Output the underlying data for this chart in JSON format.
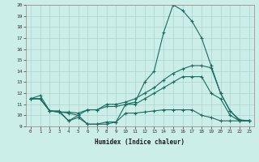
{
  "xlabel": "Humidex (Indice chaleur)",
  "background_color": "#cceee8",
  "grid_color": "#aad4ce",
  "line_color": "#1a6b60",
  "xlim": [
    -0.5,
    23.5
  ],
  "ylim": [
    9,
    20
  ],
  "xticks": [
    0,
    1,
    2,
    3,
    4,
    5,
    6,
    7,
    8,
    9,
    10,
    11,
    12,
    13,
    14,
    15,
    16,
    17,
    18,
    19,
    20,
    21,
    22,
    23
  ],
  "yticks": [
    9,
    10,
    11,
    12,
    13,
    14,
    15,
    16,
    17,
    18,
    19,
    20
  ],
  "lines": [
    {
      "x": [
        0,
        1,
        2,
        3,
        4,
        5,
        6,
        7,
        8,
        9,
        10,
        11,
        12,
        13,
        14,
        15,
        16,
        17,
        18,
        19,
        20,
        21,
        22,
        23
      ],
      "y": [
        11.5,
        11.8,
        10.4,
        10.4,
        9.5,
        10.0,
        9.2,
        9.2,
        9.4,
        9.4,
        11.0,
        11.2,
        13.0,
        14.0,
        17.5,
        20.0,
        19.5,
        18.5,
        17.0,
        14.5,
        12.0,
        10.4,
        9.6,
        9.5
      ]
    },
    {
      "x": [
        0,
        1,
        2,
        3,
        4,
        5,
        6,
        7,
        8,
        9,
        10,
        11,
        12,
        13,
        14,
        15,
        16,
        17,
        18,
        19,
        20,
        21,
        22,
        23
      ],
      "y": [
        11.5,
        11.5,
        10.4,
        10.3,
        10.3,
        10.2,
        10.5,
        10.5,
        11.0,
        11.0,
        11.2,
        11.5,
        12.0,
        12.5,
        13.2,
        13.8,
        14.2,
        14.5,
        14.5,
        14.3,
        12.0,
        10.4,
        9.5,
        9.5
      ]
    },
    {
      "x": [
        0,
        1,
        2,
        3,
        4,
        5,
        6,
        7,
        8,
        9,
        10,
        11,
        12,
        13,
        14,
        15,
        16,
        17,
        18,
        19,
        20,
        21,
        22,
        23
      ],
      "y": [
        11.5,
        11.5,
        10.4,
        10.3,
        10.2,
        10.0,
        10.5,
        10.5,
        10.8,
        10.8,
        11.0,
        11.0,
        11.5,
        12.0,
        12.5,
        13.0,
        13.5,
        13.5,
        13.5,
        12.0,
        11.5,
        10.0,
        9.5,
        9.5
      ]
    },
    {
      "x": [
        0,
        1,
        2,
        3,
        4,
        5,
        6,
        7,
        8,
        9,
        10,
        11,
        12,
        13,
        14,
        15,
        16,
        17,
        18,
        19,
        20,
        21,
        22,
        23
      ],
      "y": [
        11.5,
        11.5,
        10.4,
        10.3,
        9.5,
        9.8,
        9.2,
        9.2,
        9.2,
        9.4,
        10.2,
        10.2,
        10.3,
        10.4,
        10.5,
        10.5,
        10.5,
        10.5,
        10.0,
        9.8,
        9.5,
        9.5,
        9.5,
        9.5
      ]
    }
  ]
}
